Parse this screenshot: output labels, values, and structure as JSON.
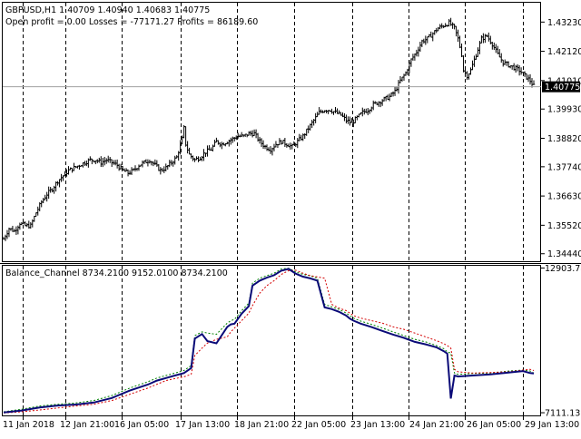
{
  "chart_data": [
    {
      "type": "ohlc",
      "title": "GBPUSD,H1  1.40709 1.40940 1.40683 1.40775",
      "info": "Open profit = 0.00   Losses = -77171.27   Profits = 86189.60",
      "y_ticks": [
        "1.43230",
        "1.42120",
        "1.41010",
        "1.39930",
        "1.38820",
        "1.37740",
        "1.36630",
        "1.35520",
        "1.34440"
      ],
      "ylim": [
        1.3419,
        1.4393
      ],
      "current_price": "1.40775",
      "current_value": 1.40775,
      "x_ticks": [
        "11 Jan 2018",
        "12 Jan 21:00",
        "16 Jan 05:00",
        "17 Jan 13:00",
        "18 Jan 21:00",
        "22 Jan 05:00",
        "23 Jan 13:00",
        "24 Jan 21:00",
        "26 Jan 05:00",
        "29 Jan 13:00"
      ],
      "close_path": [
        [
          0,
          1.35
        ],
        [
          3,
          1.354
        ],
        [
          6,
          1.353
        ],
        [
          9,
          1.356
        ],
        [
          12,
          1.355
        ],
        [
          15,
          1.355
        ],
        [
          18,
          1.36
        ],
        [
          21,
          1.364
        ],
        [
          24,
          1.367
        ],
        [
          27,
          1.369
        ],
        [
          30,
          1.372
        ],
        [
          33,
          1.374
        ],
        [
          36,
          1.376
        ],
        [
          39,
          1.377
        ],
        [
          42,
          1.378
        ],
        [
          45,
          1.379
        ],
        [
          48,
          1.38
        ],
        [
          51,
          1.38
        ],
        [
          54,
          1.379
        ],
        [
          57,
          1.38
        ],
        [
          60,
          1.379
        ],
        [
          63,
          1.378
        ],
        [
          66,
          1.376
        ],
        [
          69,
          1.375
        ],
        [
          72,
          1.376
        ],
        [
          75,
          1.378
        ],
        [
          78,
          1.379
        ],
        [
          81,
          1.38
        ],
        [
          84,
          1.378
        ],
        [
          87,
          1.376
        ],
        [
          90,
          1.377
        ],
        [
          93,
          1.379
        ],
        [
          96,
          1.381
        ],
        [
          99,
          1.388
        ],
        [
          100,
          1.392
        ],
        [
          101,
          1.386
        ],
        [
          103,
          1.382
        ],
        [
          106,
          1.38
        ],
        [
          109,
          1.381
        ],
        [
          112,
          1.383
        ],
        [
          115,
          1.384
        ],
        [
          118,
          1.387
        ],
        [
          121,
          1.386
        ],
        [
          124,
          1.387
        ],
        [
          127,
          1.388
        ],
        [
          130,
          1.389
        ],
        [
          133,
          1.389
        ],
        [
          136,
          1.39
        ],
        [
          139,
          1.39
        ],
        [
          142,
          1.387
        ],
        [
          145,
          1.385
        ],
        [
          148,
          1.384
        ],
        [
          151,
          1.386
        ],
        [
          154,
          1.387
        ],
        [
          157,
          1.386
        ],
        [
          160,
          1.385
        ],
        [
          163,
          1.387
        ],
        [
          166,
          1.389
        ],
        [
          169,
          1.392
        ],
        [
          172,
          1.395
        ],
        [
          175,
          1.398
        ],
        [
          178,
          1.399
        ],
        [
          181,
          1.399
        ],
        [
          184,
          1.398
        ],
        [
          187,
          1.397
        ],
        [
          190,
          1.395
        ],
        [
          193,
          1.394
        ],
        [
          196,
          1.396
        ],
        [
          199,
          1.398
        ],
        [
          202,
          1.399
        ],
        [
          205,
          1.401
        ],
        [
          208,
          1.402
        ],
        [
          211,
          1.403
        ],
        [
          214,
          1.404
        ],
        [
          217,
          1.406
        ],
        [
          220,
          1.41
        ],
        [
          223,
          1.413
        ],
        [
          226,
          1.418
        ],
        [
          229,
          1.421
        ],
        [
          232,
          1.425
        ],
        [
          235,
          1.426
        ],
        [
          238,
          1.428
        ],
        [
          241,
          1.43
        ],
        [
          244,
          1.431
        ],
        [
          247,
          1.432
        ],
        [
          250,
          1.43
        ],
        [
          252,
          1.426
        ],
        [
          254,
          1.42
        ],
        [
          255,
          1.414
        ],
        [
          257,
          1.412
        ],
        [
          259,
          1.414
        ],
        [
          262,
          1.42
        ],
        [
          265,
          1.426
        ],
        [
          268,
          1.427
        ],
        [
          271,
          1.424
        ],
        [
          274,
          1.42
        ],
        [
          277,
          1.417
        ],
        [
          280,
          1.416
        ],
        [
          283,
          1.415
        ],
        [
          286,
          1.414
        ],
        [
          289,
          1.412
        ],
        [
          292,
          1.41
        ],
        [
          294,
          1.408
        ]
      ]
    },
    {
      "type": "line",
      "title": "Balance_Channel 8734.2100 9152.0100 8734.2100",
      "y_ticks": [
        "12903.78",
        "7111.13"
      ],
      "ylim": [
        7040,
        12960
      ],
      "x": [
        0,
        10,
        20,
        30,
        40,
        50,
        60,
        70,
        80,
        85,
        90,
        95,
        100,
        104,
        106,
        110,
        113,
        118,
        124,
        126,
        128,
        132,
        136,
        138,
        142,
        146,
        150,
        154,
        158,
        162,
        166,
        170,
        174,
        178,
        182,
        186,
        190,
        192,
        194,
        198,
        204,
        210,
        216,
        222,
        228,
        234,
        240,
        244,
        246,
        248,
        250,
        252,
        260,
        270,
        280,
        288,
        292,
        294
      ],
      "series": [
        {
          "values": [
            7120,
            7200,
            7320,
            7400,
            7440,
            7520,
            7700,
            8000,
            8240,
            8400,
            8500,
            8600,
            8700,
            8900,
            10080,
            10260,
            9980,
            9890,
            10550,
            10650,
            10680,
            11080,
            11380,
            12200,
            12400,
            12520,
            12620,
            12800,
            12870,
            12680,
            12560,
            12490,
            12400,
            11330,
            11260,
            11150,
            11000,
            10880,
            10800,
            10680,
            10540,
            10390,
            10240,
            10110,
            9950,
            9850,
            9730,
            9580,
            9480,
            7680,
            8600,
            8560,
            8600,
            8650,
            8720,
            8780,
            8700,
            8680
          ]
        },
        {
          "values": [
            7100,
            7150,
            7220,
            7300,
            7380,
            7450,
            7600,
            7850,
            8100,
            8250,
            8400,
            8480,
            8550,
            8650,
            9400,
            9700,
            9900,
            10050,
            10150,
            10350,
            10500,
            10800,
            11100,
            11400,
            11900,
            12200,
            12400,
            12650,
            12800,
            12820,
            12700,
            12600,
            12550,
            12500,
            11450,
            11300,
            11200,
            11100,
            11000,
            10900,
            10800,
            10700,
            10550,
            10450,
            10300,
            10150,
            10000,
            9880,
            9800,
            9700,
            8850,
            8750,
            8700,
            8720,
            8750,
            8820,
            8850,
            8800
          ]
        },
        {
          "values": [
            7150,
            7250,
            7380,
            7450,
            7500,
            7600,
            7800,
            8100,
            8350,
            8500,
            8600,
            8700,
            8800,
            9000,
            10200,
            10350,
            10300,
            10250,
            10700,
            10800,
            10850,
            11200,
            11500,
            12300,
            12500,
            12600,
            12700,
            12870,
            12900,
            12750,
            12650,
            12600,
            12500,
            11450,
            11350,
            11250,
            11100,
            11000,
            10900,
            10780,
            10650,
            10500,
            10350,
            10200,
            10050,
            9950,
            9800,
            9680,
            9550,
            9500,
            8700,
            8650,
            8680,
            8700,
            8780,
            8820,
            8780,
            8700
          ]
        }
      ],
      "colors": [
        "#0a0a78",
        "#d40000",
        "#008000"
      ],
      "x_ticks": [
        "11 Jan 2018",
        "12 Jan 21:00",
        "16 Jan 05:00",
        "17 Jan 13:00",
        "18 Jan 21:00",
        "22 Jan 05:00",
        "23 Jan 13:00",
        "24 Jan 21:00",
        "26 Jan 05:00",
        "29 Jan 13:00"
      ]
    }
  ]
}
